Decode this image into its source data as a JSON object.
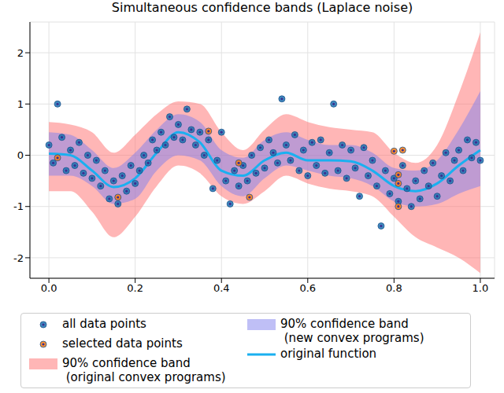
{
  "chart_data": {
    "type": "scatter",
    "title": "Simultaneous confidence bands (Laplace noise)",
    "x": [
      0,
      0.05,
      0.1,
      0.15,
      0.2,
      0.25,
      0.3,
      0.35,
      0.4,
      0.45,
      0.5,
      0.55,
      0.6,
      0.65,
      0.7,
      0.75,
      0.8,
      0.85,
      0.9,
      0.95,
      1.0
    ],
    "xlim": [
      -0.044,
      1.033
    ],
    "xticks": [
      {
        "value": 0,
        "label": "0.0"
      },
      {
        "value": 0.2,
        "label": "0.2"
      },
      {
        "value": 0.4,
        "label": "0.4"
      },
      {
        "value": 0.6,
        "label": "0.6"
      },
      {
        "value": 0.8,
        "label": "0.8"
      },
      {
        "value": 1,
        "label": "1.0"
      }
    ],
    "ylim": [
      -2.4,
      2.6
    ],
    "yticks": [
      -2,
      -1,
      0,
      1,
      2
    ],
    "grid": true,
    "legend": "bottom",
    "series": [
      {
        "name": "all data points",
        "type": "scatter",
        "color": "#1f77b4",
        "marker": "circle",
        "x": [
          0.0,
          0.01,
          0.02,
          0.03,
          0.04,
          0.05,
          0.06,
          0.07,
          0.08,
          0.09,
          0.1,
          0.11,
          0.12,
          0.13,
          0.14,
          0.15,
          0.16,
          0.17,
          0.18,
          0.19,
          0.2,
          0.21,
          0.22,
          0.23,
          0.24,
          0.25,
          0.26,
          0.27,
          0.28,
          0.29,
          0.3,
          0.31,
          0.32,
          0.33,
          0.34,
          0.35,
          0.36,
          0.37,
          0.38,
          0.39,
          0.4,
          0.41,
          0.42,
          0.43,
          0.44,
          0.45,
          0.46,
          0.47,
          0.48,
          0.49,
          0.5,
          0.51,
          0.52,
          0.53,
          0.54,
          0.55,
          0.56,
          0.57,
          0.58,
          0.59,
          0.6,
          0.61,
          0.62,
          0.63,
          0.64,
          0.65,
          0.66,
          0.67,
          0.68,
          0.69,
          0.7,
          0.71,
          0.72,
          0.73,
          0.74,
          0.75,
          0.76,
          0.77,
          0.78,
          0.79,
          0.8,
          0.81,
          0.82,
          0.83,
          0.84,
          0.85,
          0.86,
          0.87,
          0.88,
          0.89,
          0.9,
          0.91,
          0.92,
          0.93,
          0.94,
          0.95,
          0.96,
          0.97,
          0.98,
          0.99,
          1.0
        ],
        "values": [
          0.2,
          -0.15,
          1.0,
          0.35,
          -0.3,
          0.1,
          -0.2,
          0.25,
          -0.35,
          0.0,
          -0.45,
          -0.1,
          -0.6,
          -0.3,
          -0.85,
          -0.5,
          -0.95,
          -0.4,
          -0.7,
          -0.2,
          -0.55,
          -0.3,
          0.0,
          -0.15,
          0.3,
          0.1,
          0.45,
          0.2,
          0.75,
          0.35,
          0.6,
          0.3,
          0.9,
          0.5,
          0.2,
          0.45,
          0.0,
          0.3,
          -0.65,
          -0.1,
          0.45,
          -0.5,
          -0.95,
          -0.3,
          -0.6,
          -0.2,
          -0.5,
          0.0,
          -0.35,
          0.15,
          -0.25,
          0.3,
          0.05,
          -0.15,
          1.1,
          0.2,
          -0.1,
          0.4,
          -0.3,
          0.1,
          -0.4,
          0.25,
          -0.2,
          0.3,
          -0.35,
          0.05,
          1.0,
          -0.3,
          0.2,
          -0.45,
          0.1,
          -0.25,
          -0.8,
          0.15,
          -0.4,
          -0.1,
          -0.6,
          -1.38,
          -0.3,
          -0.75,
          -0.45,
          -0.9,
          -0.2,
          -0.65,
          -1.0,
          -0.5,
          -0.85,
          -0.3,
          -0.6,
          -0.15,
          -0.8,
          -0.4,
          0.05,
          -0.5,
          -0.1,
          0.1,
          -0.3,
          0.3,
          -0.05,
          0.25,
          -0.1
        ]
      },
      {
        "name": "selected data points",
        "type": "scatter",
        "color": "#ff7f0e",
        "marker": "circle",
        "x": [
          0.02,
          0.16,
          0.37,
          0.44,
          0.465,
          0.8,
          0.81,
          0.81,
          0.81,
          0.82
        ],
        "values": [
          -0.05,
          -0.82,
          0.47,
          -0.15,
          -0.82,
          0.08,
          -0.38,
          -0.55,
          -1.0,
          0.1
        ]
      },
      {
        "name": "90% confidence band\n (original convex programs)",
        "type": "band",
        "color": "#ff6d6d",
        "lower": [
          -0.7,
          -0.7,
          -1.1,
          -1.6,
          -1.2,
          -0.6,
          -0.2,
          -0.35,
          -0.8,
          -0.95,
          -0.7,
          -0.4,
          -0.55,
          -0.65,
          -0.7,
          -0.8,
          -1.2,
          -1.6,
          -1.8,
          -2.0,
          -2.3
        ],
        "upper": [
          0.65,
          0.6,
          0.45,
          0.05,
          0.4,
          0.8,
          1.05,
          1.0,
          0.45,
          0.1,
          0.5,
          0.8,
          0.65,
          0.55,
          0.5,
          0.45,
          0.05,
          -0.15,
          0.2,
          1.2,
          2.4
        ]
      },
      {
        "name": "90% confidence band\n (new convex programs)",
        "type": "band",
        "color": "#8080ee",
        "lower": [
          -0.4,
          -0.4,
          -0.6,
          -0.95,
          -0.85,
          -0.3,
          0.0,
          -0.1,
          -0.6,
          -0.8,
          -0.45,
          -0.2,
          -0.3,
          -0.4,
          -0.45,
          -0.6,
          -0.9,
          -1.0,
          -0.95,
          -0.75,
          -0.6
        ],
        "upper": [
          0.45,
          0.4,
          0.1,
          -0.25,
          0.05,
          0.5,
          0.8,
          0.65,
          0.1,
          -0.05,
          0.3,
          0.45,
          0.3,
          0.2,
          0.2,
          0.05,
          -0.25,
          -0.3,
          -0.1,
          0.5,
          1.25
        ]
      },
      {
        "name": "original function",
        "type": "line",
        "color": "#1ab0f0",
        "line_style": "solid",
        "values": [
          0.03,
          0.0,
          -0.3,
          -0.62,
          -0.45,
          0.05,
          0.45,
          0.25,
          -0.3,
          -0.4,
          -0.1,
          0.05,
          -0.1,
          -0.1,
          -0.12,
          -0.3,
          -0.6,
          -0.7,
          -0.55,
          -0.2,
          0.1
        ]
      }
    ]
  }
}
